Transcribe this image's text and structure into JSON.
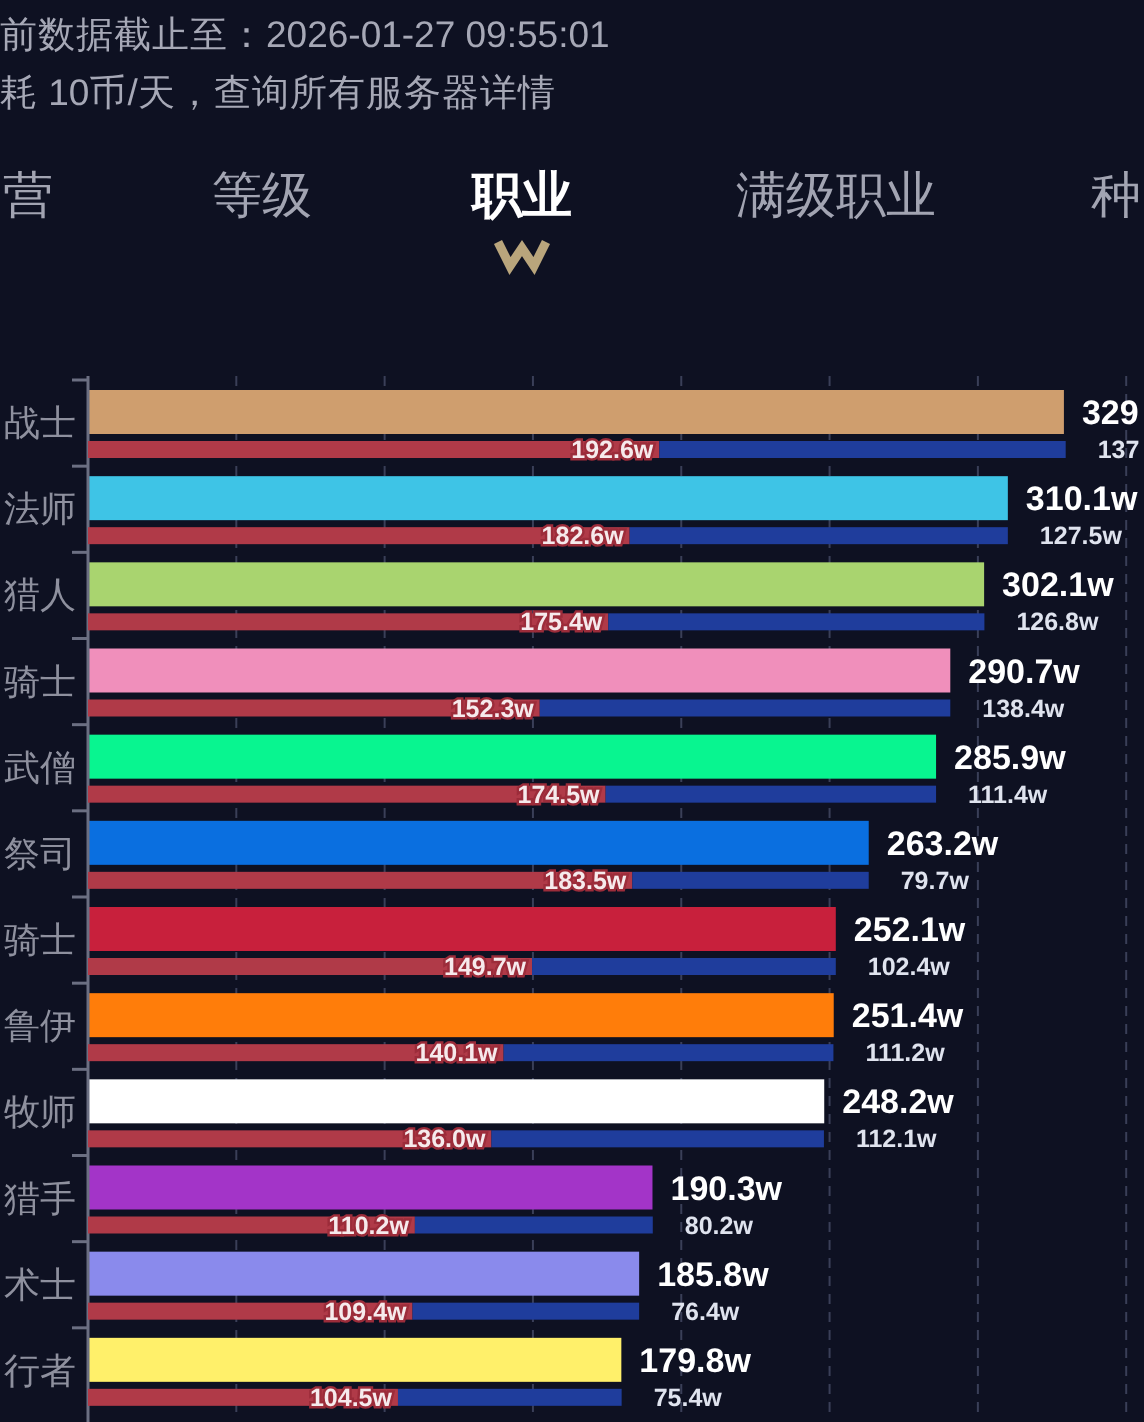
{
  "chart_data": [
    {
      "type": "bar",
      "orientation": "horizontal",
      "title": "职业",
      "annotations": [
        "前数据截止至：2026-01-27 09:55:01",
        "耗 10币/天，查询所有服务器详情",
        "营",
        "等级",
        "满级职业",
        "种"
      ],
      "categories": [
        "战士",
        "法师",
        "猎人",
        "骑士",
        "武僧",
        "祭司",
        "骑士",
        "鲁伊",
        "牧师",
        "猎手",
        "术士",
        "行者"
      ],
      "colors": [
        "#cf9e6e",
        "#3ec4e6",
        "#a9d46f",
        "#f08fbb",
        "#08f590",
        "#0a6fe0",
        "#c8203c",
        "#ff7d0a",
        "#ffffff",
        "#a334c8",
        "#8a8aec",
        "#fff06a"
      ],
      "values": [
        329,
        310.1,
        302.1,
        290.7,
        285.9,
        263.2,
        252.1,
        251.4,
        248.2,
        190.3,
        185.8,
        179.8
      ],
      "value_labels": [
        "329",
        "310.1w",
        "302.1w",
        "290.7w",
        "285.9w",
        "263.2w",
        "252.1w",
        "251.4w",
        "248.2w",
        "190.3w",
        "185.8w",
        "179.8w"
      ],
      "xlim": [
        0,
        356
      ],
      "xticks": [
        {
          "value": 50,
          "label": null
        },
        {
          "value": 100,
          "label": null
        },
        {
          "value": 150,
          "label": null
        },
        {
          "value": 200,
          "label": null
        },
        {
          "value": 250,
          "label": null
        },
        {
          "value": 300,
          "label": null
        },
        {
          "value": 350,
          "label": null
        }
      ],
      "tick_labels": "y",
      "grid": "x"
    },
    {
      "type": "bar",
      "orientation": "horizontal",
      "stacked": true,
      "categories": [
        null,
        null,
        null,
        null,
        null,
        null,
        null,
        null,
        null,
        null,
        null,
        null
      ],
      "series": [
        {
          "color": "#b03a48",
          "values": [
            192.6,
            182.6,
            175.4,
            152.3,
            174.5,
            183.5,
            149.7,
            140.1,
            136.0,
            110.2,
            109.4,
            104.5
          ],
          "value_labels": [
            "192.6w",
            "182.6w",
            "175.4w",
            "152.3w",
            "174.5w",
            "183.5w",
            "149.7w",
            "140.1w",
            "136.0w",
            "110.2w",
            "109.4w",
            "104.5w"
          ]
        },
        {
          "color": "#1f3d9c",
          "values": [
            137,
            127.5,
            126.8,
            138.4,
            111.4,
            79.7,
            102.4,
            111.2,
            112.1,
            80.2,
            76.4,
            75.4
          ],
          "value_labels": [
            "137",
            "127.5w",
            "126.8w",
            "138.4w",
            "111.4w",
            "79.7w",
            "102.4w",
            "111.2w",
            "112.1w",
            "80.2w",
            "76.4w",
            "75.4w"
          ]
        }
      ],
      "xlim": [
        0,
        356
      ],
      "tick_labels": false
    }
  ]
}
